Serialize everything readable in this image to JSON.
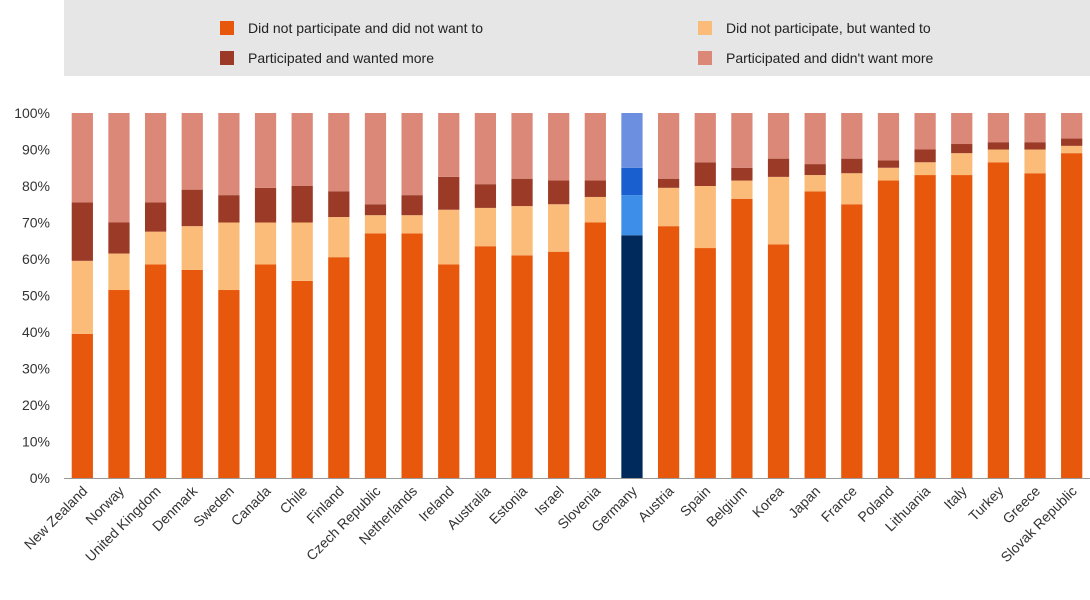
{
  "chart_data": {
    "type": "bar",
    "stacked": true,
    "title": "",
    "xlabel": "",
    "ylabel": "",
    "ylim": [
      0,
      100
    ],
    "y_ticks": [
      "0%",
      "10%",
      "20%",
      "30%",
      "40%",
      "50%",
      "60%",
      "70%",
      "80%",
      "90%",
      "100%"
    ],
    "grid": false,
    "legend_position": "top",
    "categories": [
      "New Zealand",
      "Norway",
      "United Kingdom",
      "Denmark",
      "Sweden",
      "Canada",
      "Chile",
      "Finland",
      "Czech Republic",
      "Netherlands",
      "Ireland",
      "Australia",
      "Estonia",
      "Israel",
      "Slovenia",
      "Germany",
      "Austria",
      "Spain",
      "Belgium",
      "Korea",
      "Japan",
      "France",
      "Poland",
      "Lithuania",
      "Italy",
      "Turkey",
      "Greece",
      "Slovak Republic"
    ],
    "highlight_category": "Germany",
    "series": [
      {
        "name": "Did not participate and did not want to",
        "color": "#e8580c",
        "highlight_color": "#002a5c",
        "values": [
          39.5,
          51.5,
          58.5,
          57,
          51.5,
          58.5,
          54,
          60.5,
          67,
          67,
          58.5,
          63.5,
          61,
          62,
          70,
          66.5,
          69,
          63,
          76.5,
          64,
          78.5,
          75,
          81.5,
          83,
          83,
          86.5,
          83.5,
          89
        ]
      },
      {
        "name": "Did not participate, but wanted to",
        "color": "#fbbc7a",
        "highlight_color": "#3d8ee8",
        "values": [
          20,
          10,
          9,
          12,
          18.5,
          11.5,
          16,
          11,
          5,
          5,
          15,
          10.5,
          13.5,
          13,
          7,
          11,
          10.5,
          17,
          5,
          18.5,
          4.5,
          8.5,
          3.5,
          3.5,
          6,
          3.5,
          6.5,
          2
        ]
      },
      {
        "name": "Participated and wanted more",
        "color": "#9b3a26",
        "highlight_color": "#1a5fcf",
        "values": [
          16,
          8.5,
          8,
          10,
          7.5,
          9.5,
          10,
          7,
          3,
          5.5,
          9,
          6.5,
          7.5,
          6.5,
          4.5,
          7.5,
          2.5,
          6.5,
          3.5,
          5,
          3,
          4,
          2,
          3.5,
          2.5,
          2,
          2,
          2
        ]
      },
      {
        "name": "Participated and didn't want more",
        "color": "#dc8878",
        "highlight_color": "#6d8fe0",
        "values": [
          24.5,
          30,
          24.5,
          21,
          22.5,
          20.5,
          20,
          21.5,
          25,
          22.5,
          17.5,
          19.5,
          18,
          18.5,
          18.5,
          15,
          18,
          13.5,
          15,
          12.5,
          14,
          12.5,
          13,
          10,
          8.5,
          8,
          8,
          7
        ]
      }
    ]
  }
}
